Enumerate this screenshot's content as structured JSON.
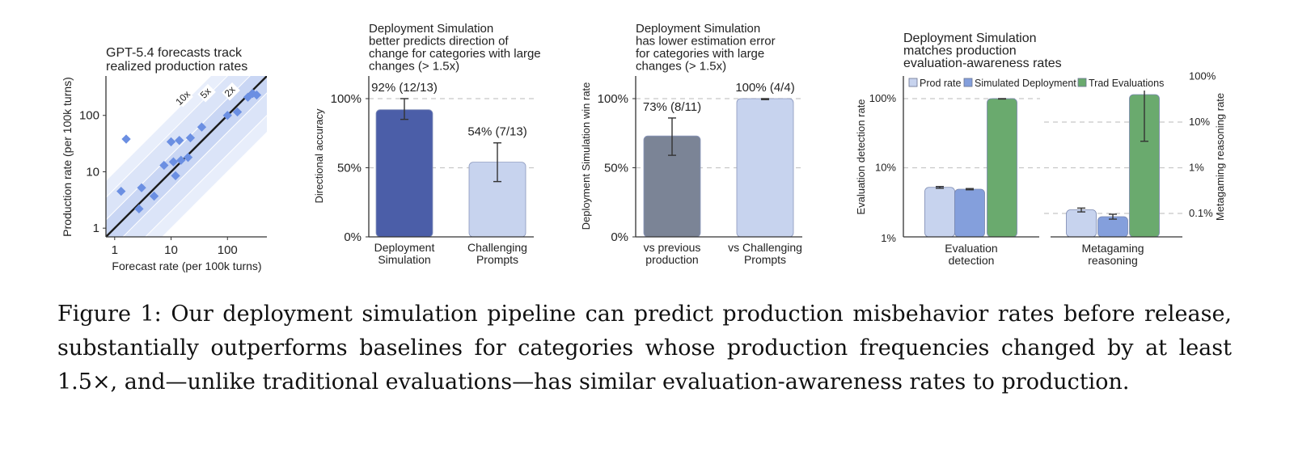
{
  "chart_data": [
    {
      "type": "scatter",
      "title": "GPT-5.4 forecasts track\nrealized production rates",
      "xlabel": "Forecast rate (per 100k turns)",
      "ylabel": "Production rate (per 100k turns)",
      "xscale": "log",
      "yscale": "log",
      "xlim": [
        0.7,
        500
      ],
      "ylim": [
        0.7,
        500
      ],
      "xticks": [
        "1",
        "10",
        "100"
      ],
      "yticks": [
        "1",
        "10",
        "100"
      ],
      "bands": [
        "10x",
        "5x",
        "2x"
      ],
      "points": [
        {
          "x": 1.6,
          "y": 38
        },
        {
          "x": 1.3,
          "y": 4.5
        },
        {
          "x": 2.7,
          "y": 2.2
        },
        {
          "x": 3.0,
          "y": 5.2
        },
        {
          "x": 5.0,
          "y": 3.7
        },
        {
          "x": 7.5,
          "y": 13
        },
        {
          "x": 10,
          "y": 34
        },
        {
          "x": 11,
          "y": 15
        },
        {
          "x": 12,
          "y": 8.5
        },
        {
          "x": 14,
          "y": 36
        },
        {
          "x": 15,
          "y": 16
        },
        {
          "x": 20,
          "y": 18
        },
        {
          "x": 22,
          "y": 40
        },
        {
          "x": 35,
          "y": 62
        },
        {
          "x": 100,
          "y": 100
        },
        {
          "x": 150,
          "y": 115
        },
        {
          "x": 230,
          "y": 210
        },
        {
          "x": 280,
          "y": 245
        },
        {
          "x": 330,
          "y": 230
        }
      ],
      "color": "#6b8fe2"
    },
    {
      "type": "bar",
      "title": "Deployment Simulation\nbetter predicts direction of\nchange for categories with large\nchanges (> 1.5x)",
      "ylabel": "Directional accuracy",
      "ylim": [
        0,
        100
      ],
      "yticks": [
        "0%",
        "50%",
        "100%"
      ],
      "categories": [
        "Deployment\nSimulation",
        "Challenging\nPrompts"
      ],
      "values": [
        92,
        54
      ],
      "errors": [
        [
          85,
          100
        ],
        [
          40,
          68
        ]
      ],
      "labels": [
        "92% (12/13)",
        "54% (7/13)"
      ],
      "colors": [
        "#4b5ea8",
        "#c7d3ee"
      ]
    },
    {
      "type": "bar",
      "title": "Deployment Simulation\nhas lower estimation error\nfor categories with large\nchanges (> 1.5x)",
      "ylabel": "Deployment Simulation win rate",
      "ylim": [
        0,
        100
      ],
      "yticks": [
        "0%",
        "50%",
        "100%"
      ],
      "categories": [
        "vs previous\nproduction",
        "vs Challenging\nPrompts"
      ],
      "values": [
        73,
        100
      ],
      "errors": [
        [
          59,
          86
        ],
        [
          99.3,
          100
        ]
      ],
      "labels": [
        "73% (8/11)",
        "100% (4/4)"
      ],
      "colors": [
        "#7b8496",
        "#c7d3ee"
      ]
    },
    {
      "type": "bar",
      "title": "Deployment Simulation\nmatches production\nevaluation-awareness rates",
      "ylabel": "Evaluation detection rate",
      "y2label": "Metagaming reasoning rate",
      "yscale": "log",
      "yticks": [
        "1%",
        "10%",
        "100%"
      ],
      "y2ticks": [
        "0.1%",
        "1%",
        "10%",
        "100%"
      ],
      "legend_position": "top",
      "groups": [
        "Evaluation\ndetection",
        "Metagaming\nreasoning"
      ],
      "series": [
        {
          "name": "Prod rate",
          "color": "#c7d3ee",
          "values": [
            5.2,
            0.12
          ],
          "errors": [
            [
              5.05,
              5.35
            ],
            [
              0.108,
              0.131
            ]
          ]
        },
        {
          "name": "Simulated Deployment",
          "color": "#849fdc",
          "values": [
            4.9,
            0.085
          ],
          "errors": [
            [
              4.8,
              5.0
            ],
            [
              0.075,
              0.096
            ]
          ]
        },
        {
          "name": "Trad Evaluations",
          "color": "#6aaa6e",
          "values": [
            100,
            40
          ],
          "errors": [
            [
              98.8,
              100
            ],
            [
              3.8,
              160
            ]
          ]
        }
      ]
    }
  ],
  "caption": "Figure 1:  Our deployment simulation pipeline can predict production misbehavior rates before release, substantially outperforms baselines for categories whose production frequencies changed by at least 1.5×, and—unlike traditional evaluations—has similar evaluation-awareness rates to production."
}
